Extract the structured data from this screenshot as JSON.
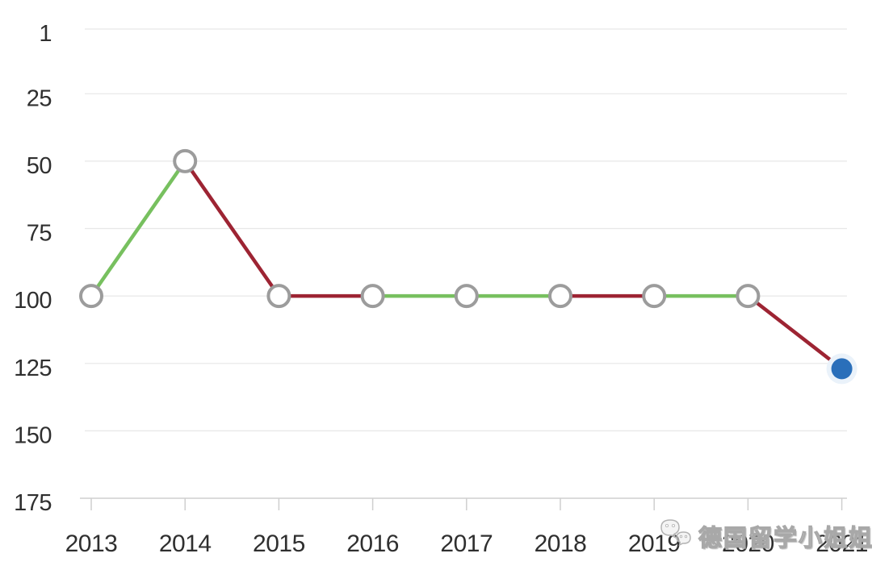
{
  "page": {
    "background": "#ffffff"
  },
  "watermark": {
    "icon": "wechat-bubbles-icon",
    "text": "德国留学小姐姐"
  },
  "colors": {
    "up_segment": "#77c05f",
    "down_segment": "#9d2433",
    "marker_stroke": "#9c9c9c",
    "marker_fill": "#ffffff",
    "current_point_fill": "#2a6fba",
    "current_point_halo": "#eaf2fa",
    "grid_line": "#e7e7e7",
    "axis_line": "#cfcfcf",
    "tick_mark": "#cfcfcf",
    "tick_label": "#2f2f2f",
    "watermark_gray": "#a8a8a8"
  },
  "chart_data": {
    "type": "line",
    "title": "",
    "xlabel": "",
    "ylabel": "",
    "categories": [
      "2013",
      "2014",
      "2015",
      "2016",
      "2017",
      "2018",
      "2019",
      "2020",
      "2021"
    ],
    "values": [
      100,
      50,
      100,
      100,
      100,
      100,
      100,
      100,
      127
    ],
    "segment_trends": [
      "up",
      "down",
      "down",
      "up",
      "up",
      "down",
      "up",
      "down"
    ],
    "y_ticks": [
      1,
      25,
      50,
      75,
      100,
      125,
      150,
      175
    ],
    "y_axis": {
      "inverted": true,
      "min": 1,
      "max": 175
    },
    "grid": "horizontal-only",
    "legend": "none",
    "markers": {
      "default": "open-gray-circle",
      "last": "filled-blue-dot-with-halo"
    }
  }
}
